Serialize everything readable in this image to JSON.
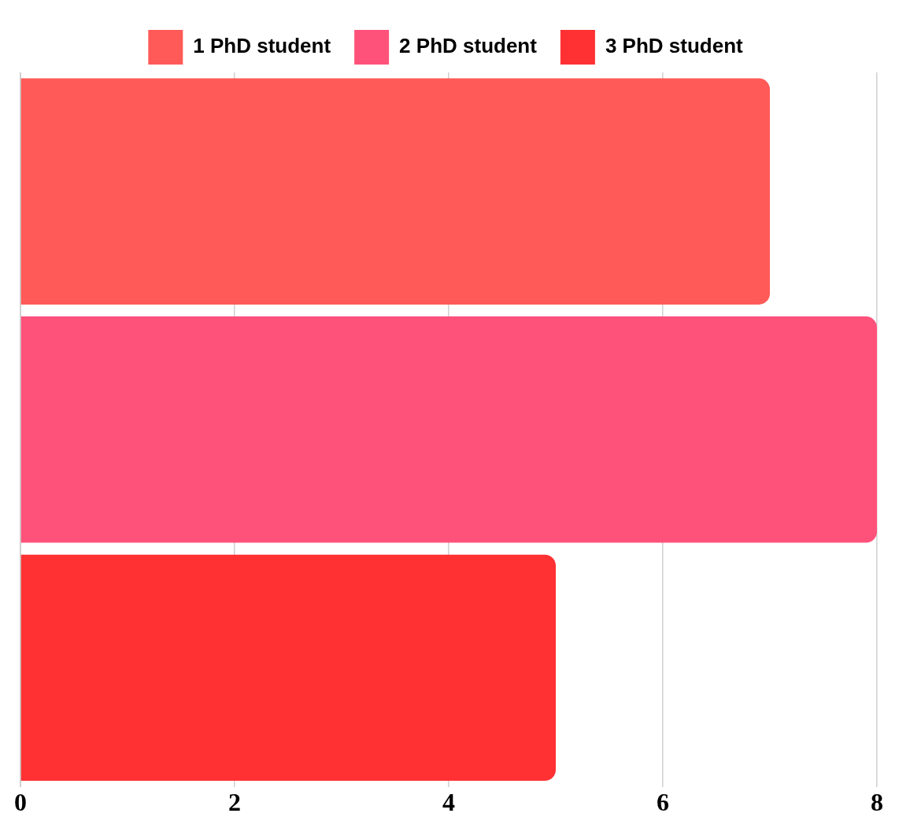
{
  "chart_data": {
    "type": "bar",
    "orientation": "horizontal",
    "stacked": true,
    "categories": [
      null,
      null,
      null
    ],
    "series": [
      {
        "name": "1 PhD student",
        "color": "#ff5a57",
        "values": [
          7,
          null,
          null
        ]
      },
      {
        "name": "2 PhD student",
        "color": "#ff527b",
        "values": [
          null,
          8,
          null
        ]
      },
      {
        "name": "3 PhD student",
        "color": "#ff3133",
        "values": [
          null,
          null,
          5
        ]
      }
    ],
    "xlim": [
      0,
      8
    ],
    "xticks": [
      0,
      2,
      4,
      6,
      8
    ],
    "grid": "x",
    "legend": "top",
    "tick_labels": "x"
  }
}
